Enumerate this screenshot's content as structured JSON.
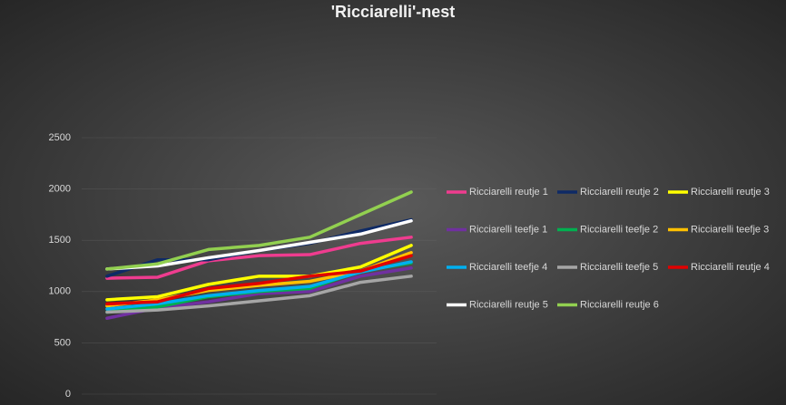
{
  "chart_data": {
    "type": "line",
    "title": "'Ricciarelli'-nest",
    "categories": [
      null,
      null,
      null,
      null,
      null,
      null,
      null
    ],
    "ylim": [
      0,
      2500
    ],
    "yticks": [
      0,
      500,
      1000,
      1500,
      2000,
      2500
    ],
    "grid": true,
    "legend": "right",
    "series": [
      {
        "name": "Ricciarelli reutje 1",
        "color": "#ef3c8f",
        "values": [
          1130,
          1140,
          1300,
          1350,
          1360,
          1470,
          1530
        ]
      },
      {
        "name": "Ricciarelli reutje 2",
        "color": "#0e2a66",
        "values": [
          1150,
          1310,
          1310,
          1400,
          1470,
          1590,
          1700
        ]
      },
      {
        "name": "Ricciarelli reutje 3",
        "color": "#ffff00",
        "values": [
          920,
          950,
          1070,
          1150,
          1150,
          1240,
          1450
        ]
      },
      {
        "name": "Ricciarelli teefje 1",
        "color": "#7030a0",
        "values": [
          740,
          840,
          900,
          980,
          1000,
          1150,
          1230
        ]
      },
      {
        "name": "Ricciarelli teefje 2",
        "color": "#00b050",
        "values": [
          800,
          850,
          950,
          1000,
          1030,
          1200,
          1280
        ]
      },
      {
        "name": "Ricciarelli teefje 3",
        "color": "#ffc000",
        "values": [
          860,
          920,
          1010,
          1060,
          1100,
          1200,
          1380
        ]
      },
      {
        "name": "Ricciarelli teefje 4",
        "color": "#00b0f0",
        "values": [
          830,
          880,
          960,
          1010,
          1050,
          1190,
          1290
        ]
      },
      {
        "name": "Ricciarelli teefje 5",
        "color": "#a6a6a6",
        "values": [
          800,
          820,
          860,
          910,
          960,
          1090,
          1150
        ]
      },
      {
        "name": "Ricciarelli reutje 4",
        "color": "#e00000",
        "values": [
          880,
          900,
          1030,
          1080,
          1150,
          1200,
          1350
        ]
      },
      {
        "name": "Ricciarelli reutje 5",
        "color": "#ffffff",
        "values": [
          1220,
          1250,
          1330,
          1400,
          1480,
          1560,
          1690
        ]
      },
      {
        "name": "Ricciarelli reutje 6",
        "color": "#92d050",
        "values": [
          1220,
          1270,
          1410,
          1450,
          1530,
          1750,
          1970
        ]
      }
    ]
  }
}
